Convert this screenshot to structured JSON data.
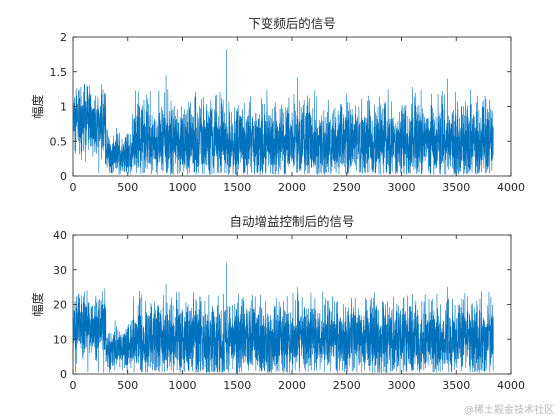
{
  "chart_data": [
    {
      "type": "line",
      "title": "下变频后的信号",
      "xlabel": "",
      "ylabel": "幅度",
      "xlim": [
        0,
        4000
      ],
      "ylim": [
        0,
        2
      ],
      "xticks": [
        "0",
        "500",
        "1000",
        "1500",
        "2000",
        "2500",
        "3000",
        "3500",
        "4000"
      ],
      "yticks": [
        "0",
        "0.5",
        "1",
        "1.5",
        "2"
      ],
      "grid": false,
      "line_color": "#0072BD",
      "n_samples": 3840,
      "segments": [
        {
          "x_range": [
            0,
            300
          ],
          "mean": 0.75,
          "typical_range": [
            0.2,
            1.3
          ]
        },
        {
          "x_range": [
            300,
            540
          ],
          "mean": 0.3,
          "typical_range": [
            0.05,
            0.7
          ]
        },
        {
          "x_range": [
            540,
            3840
          ],
          "mean": 0.5,
          "typical_range": [
            0.05,
            1.2
          ]
        }
      ],
      "peaks": [
        {
          "x": 1400,
          "y": 1.82
        },
        {
          "x": 850,
          "y": 1.45
        },
        {
          "x": 2050,
          "y": 1.42
        },
        {
          "x": 3420,
          "y": 1.4
        },
        {
          "x": 3100,
          "y": 1.28
        }
      ]
    },
    {
      "type": "line",
      "title": "自动增益控制后的信号",
      "xlabel": "",
      "ylabel": "幅度",
      "xlim": [
        0,
        4000
      ],
      "ylim": [
        0,
        40
      ],
      "xticks": [
        "0",
        "500",
        "1000",
        "1500",
        "2000",
        "2500",
        "3000",
        "3500",
        "4000"
      ],
      "yticks": [
        "0",
        "10",
        "20",
        "30",
        "40"
      ],
      "grid": false,
      "line_color": "#0072BD",
      "n_samples": 3840,
      "segments": [
        {
          "x_range": [
            0,
            300
          ],
          "mean": 14,
          "typical_range": [
            4,
            24
          ]
        },
        {
          "x_range": [
            300,
            540
          ],
          "mean": 7,
          "typical_range": [
            1,
            15
          ]
        },
        {
          "x_range": [
            540,
            3840
          ],
          "mean": 10,
          "typical_range": [
            1,
            23
          ]
        }
      ],
      "peaks": [
        {
          "x": 1400,
          "y": 32
        },
        {
          "x": 850,
          "y": 26
        },
        {
          "x": 2050,
          "y": 25
        },
        {
          "x": 3420,
          "y": 25
        },
        {
          "x": 3100,
          "y": 23
        }
      ]
    }
  ],
  "watermark": "@稀土掘金技术社区"
}
